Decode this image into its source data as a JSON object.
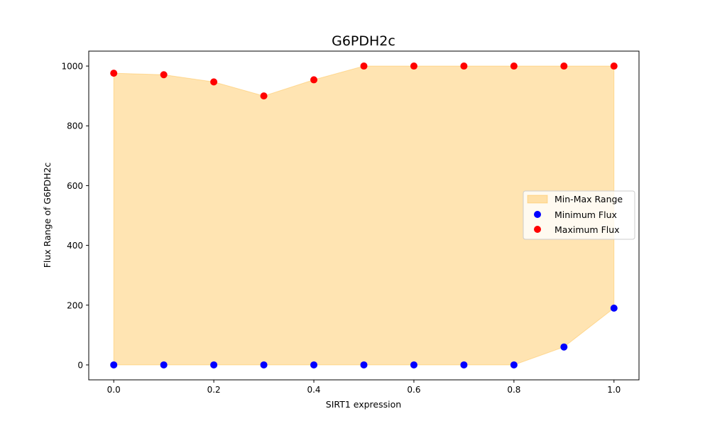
{
  "chart_data": {
    "type": "scatter",
    "title": "G6PDH2c",
    "xlabel": "SIRT1 expression",
    "ylabel": "Flux Range of G6PDH2c",
    "xlim": [
      -0.05,
      1.05
    ],
    "ylim": [
      -50,
      1050
    ],
    "xticks": [
      "0.0",
      "0.2",
      "0.4",
      "0.6",
      "0.8",
      "1.0"
    ],
    "yticks": [
      "0",
      "200",
      "400",
      "600",
      "800",
      "1000"
    ],
    "x": [
      0.0,
      0.1,
      0.2,
      0.3,
      0.4,
      0.5,
      0.6,
      0.7,
      0.8,
      0.9,
      1.0
    ],
    "series": [
      {
        "name": "Minimum Flux",
        "color": "#0000ff",
        "values": [
          0,
          0,
          0,
          0,
          0,
          0,
          0,
          0,
          0,
          60,
          190
        ]
      },
      {
        "name": "Maximum Flux",
        "color": "#ff0000",
        "values": [
          976,
          971,
          947,
          900,
          954,
          1000,
          1000,
          1000,
          1000,
          1000,
          1000
        ]
      }
    ],
    "fill": {
      "name": "Min-Max Range",
      "color": "#ffa500",
      "opacity": 0.3
    },
    "legend_placement": "center-right",
    "grid": false
  }
}
